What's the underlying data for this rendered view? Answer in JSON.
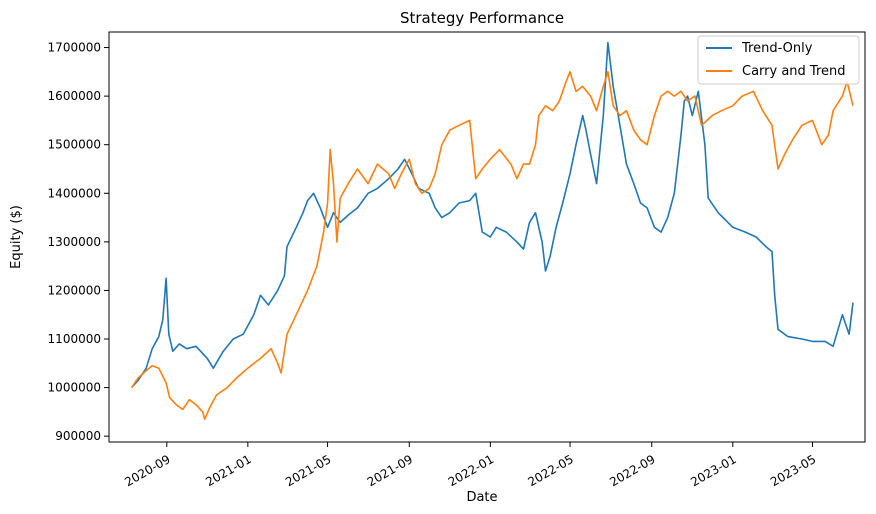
{
  "chart_data": {
    "type": "line",
    "title": "Strategy Performance",
    "xlabel": "Date",
    "ylabel": "Equity ($)",
    "x_ticks": [
      "2020-09",
      "2021-01",
      "2021-05",
      "2021-09",
      "2022-01",
      "2022-05",
      "2022-09",
      "2023-01",
      "2023-05"
    ],
    "y_ticks": [
      "900000",
      "1000000",
      "1100000",
      "1200000",
      "1300000",
      "1400000",
      "1500000",
      "1600000",
      "1700000"
    ],
    "xlim": [
      "2020-06-06",
      "2023-07-19"
    ],
    "ylim": [
      888000,
      1732000
    ],
    "legend_position": "top-right",
    "grid": false,
    "series": [
      {
        "name": "Trend-Only",
        "color": "#1f77b4",
        "points": [
          [
            "2020-07-10",
            1000000
          ],
          [
            "2020-07-20",
            1015000
          ],
          [
            "2020-08-01",
            1040000
          ],
          [
            "2020-08-10",
            1080000
          ],
          [
            "2020-08-20",
            1105000
          ],
          [
            "2020-08-26",
            1140000
          ],
          [
            "2020-08-31",
            1225000
          ],
          [
            "2020-09-04",
            1110000
          ],
          [
            "2020-09-10",
            1075000
          ],
          [
            "2020-09-20",
            1090000
          ],
          [
            "2020-10-01",
            1080000
          ],
          [
            "2020-10-15",
            1085000
          ],
          [
            "2020-11-01",
            1060000
          ],
          [
            "2020-11-10",
            1040000
          ],
          [
            "2020-11-25",
            1075000
          ],
          [
            "2020-12-10",
            1100000
          ],
          [
            "2020-12-25",
            1110000
          ],
          [
            "2021-01-10",
            1150000
          ],
          [
            "2021-01-20",
            1190000
          ],
          [
            "2021-02-01",
            1170000
          ],
          [
            "2021-02-15",
            1200000
          ],
          [
            "2021-02-25",
            1230000
          ],
          [
            "2021-03-01",
            1290000
          ],
          [
            "2021-03-15",
            1330000
          ],
          [
            "2021-03-25",
            1360000
          ],
          [
            "2021-04-01",
            1385000
          ],
          [
            "2021-04-10",
            1400000
          ],
          [
            "2021-04-20",
            1370000
          ],
          [
            "2021-05-01",
            1330000
          ],
          [
            "2021-05-10",
            1360000
          ],
          [
            "2021-05-20",
            1340000
          ],
          [
            "2021-06-01",
            1355000
          ],
          [
            "2021-06-15",
            1370000
          ],
          [
            "2021-07-01",
            1400000
          ],
          [
            "2021-07-15",
            1410000
          ],
          [
            "2021-08-01",
            1430000
          ],
          [
            "2021-08-15",
            1450000
          ],
          [
            "2021-08-25",
            1470000
          ],
          [
            "2021-09-05",
            1440000
          ],
          [
            "2021-09-15",
            1410000
          ],
          [
            "2021-10-01",
            1400000
          ],
          [
            "2021-10-10",
            1370000
          ],
          [
            "2021-10-20",
            1350000
          ],
          [
            "2021-11-01",
            1360000
          ],
          [
            "2021-11-15",
            1380000
          ],
          [
            "2021-12-01",
            1385000
          ],
          [
            "2021-12-10",
            1400000
          ],
          [
            "2021-12-20",
            1320000
          ],
          [
            "2022-01-01",
            1310000
          ],
          [
            "2022-01-10",
            1330000
          ],
          [
            "2022-01-25",
            1320000
          ],
          [
            "2022-02-10",
            1300000
          ],
          [
            "2022-02-20",
            1285000
          ],
          [
            "2022-03-01",
            1340000
          ],
          [
            "2022-03-10",
            1360000
          ],
          [
            "2022-03-20",
            1300000
          ],
          [
            "2022-03-25",
            1240000
          ],
          [
            "2022-04-01",
            1270000
          ],
          [
            "2022-04-10",
            1330000
          ],
          [
            "2022-04-20",
            1380000
          ],
          [
            "2022-05-01",
            1440000
          ],
          [
            "2022-05-10",
            1500000
          ],
          [
            "2022-05-20",
            1560000
          ],
          [
            "2022-05-25",
            1530000
          ],
          [
            "2022-06-01",
            1480000
          ],
          [
            "2022-06-10",
            1420000
          ],
          [
            "2022-06-20",
            1560000
          ],
          [
            "2022-06-27",
            1710000
          ],
          [
            "2022-07-05",
            1620000
          ],
          [
            "2022-07-15",
            1540000
          ],
          [
            "2022-07-25",
            1460000
          ],
          [
            "2022-08-05",
            1420000
          ],
          [
            "2022-08-15",
            1380000
          ],
          [
            "2022-08-25",
            1370000
          ],
          [
            "2022-09-05",
            1330000
          ],
          [
            "2022-09-15",
            1320000
          ],
          [
            "2022-09-25",
            1350000
          ],
          [
            "2022-10-05",
            1400000
          ],
          [
            "2022-10-15",
            1520000
          ],
          [
            "2022-10-20",
            1590000
          ],
          [
            "2022-10-25",
            1600000
          ],
          [
            "2022-11-01",
            1560000
          ],
          [
            "2022-11-10",
            1610000
          ],
          [
            "2022-11-20",
            1500000
          ],
          [
            "2022-11-25",
            1390000
          ],
          [
            "2022-12-10",
            1360000
          ],
          [
            "2023-01-01",
            1330000
          ],
          [
            "2023-01-20",
            1320000
          ],
          [
            "2023-02-05",
            1310000
          ],
          [
            "2023-02-20",
            1290000
          ],
          [
            "2023-03-01",
            1280000
          ],
          [
            "2023-03-05",
            1190000
          ],
          [
            "2023-03-10",
            1120000
          ],
          [
            "2023-03-25",
            1105000
          ],
          [
            "2023-04-15",
            1100000
          ],
          [
            "2023-05-01",
            1095000
          ],
          [
            "2023-05-20",
            1095000
          ],
          [
            "2023-06-01",
            1085000
          ],
          [
            "2023-06-15",
            1150000
          ],
          [
            "2023-06-25",
            1110000
          ],
          [
            "2023-07-01",
            1175000
          ]
        ]
      },
      {
        "name": "Carry and Trend",
        "color": "#ff7f0e",
        "points": [
          [
            "2020-07-10",
            1000000
          ],
          [
            "2020-07-20",
            1020000
          ],
          [
            "2020-08-01",
            1035000
          ],
          [
            "2020-08-10",
            1045000
          ],
          [
            "2020-08-20",
            1040000
          ],
          [
            "2020-08-31",
            1010000
          ],
          [
            "2020-09-05",
            980000
          ],
          [
            "2020-09-15",
            965000
          ],
          [
            "2020-09-25",
            955000
          ],
          [
            "2020-10-05",
            975000
          ],
          [
            "2020-10-15",
            965000
          ],
          [
            "2020-10-25",
            950000
          ],
          [
            "2020-10-28",
            935000
          ],
          [
            "2020-11-05",
            960000
          ],
          [
            "2020-11-15",
            985000
          ],
          [
            "2020-12-01",
            1000000
          ],
          [
            "2020-12-15",
            1020000
          ],
          [
            "2021-01-01",
            1040000
          ],
          [
            "2021-01-20",
            1060000
          ],
          [
            "2021-02-05",
            1080000
          ],
          [
            "2021-02-15",
            1050000
          ],
          [
            "2021-02-20",
            1030000
          ],
          [
            "2021-03-01",
            1110000
          ],
          [
            "2021-03-15",
            1150000
          ],
          [
            "2021-04-01",
            1200000
          ],
          [
            "2021-04-15",
            1250000
          ],
          [
            "2021-04-25",
            1320000
          ],
          [
            "2021-05-01",
            1380000
          ],
          [
            "2021-05-05",
            1490000
          ],
          [
            "2021-05-10",
            1420000
          ],
          [
            "2021-05-15",
            1300000
          ],
          [
            "2021-05-20",
            1390000
          ],
          [
            "2021-06-01",
            1420000
          ],
          [
            "2021-06-15",
            1450000
          ],
          [
            "2021-07-01",
            1420000
          ],
          [
            "2021-07-15",
            1460000
          ],
          [
            "2021-08-01",
            1440000
          ],
          [
            "2021-08-10",
            1410000
          ],
          [
            "2021-08-20",
            1440000
          ],
          [
            "2021-09-01",
            1470000
          ],
          [
            "2021-09-10",
            1420000
          ],
          [
            "2021-09-20",
            1400000
          ],
          [
            "2021-10-01",
            1410000
          ],
          [
            "2021-10-10",
            1440000
          ],
          [
            "2021-10-20",
            1500000
          ],
          [
            "2021-11-01",
            1530000
          ],
          [
            "2021-11-15",
            1540000
          ],
          [
            "2021-12-01",
            1550000
          ],
          [
            "2021-12-10",
            1430000
          ],
          [
            "2021-12-20",
            1450000
          ],
          [
            "2022-01-01",
            1470000
          ],
          [
            "2022-01-15",
            1490000
          ],
          [
            "2022-02-01",
            1460000
          ],
          [
            "2022-02-10",
            1430000
          ],
          [
            "2022-02-20",
            1460000
          ],
          [
            "2022-03-01",
            1460000
          ],
          [
            "2022-03-10",
            1500000
          ],
          [
            "2022-03-15",
            1560000
          ],
          [
            "2022-03-25",
            1580000
          ],
          [
            "2022-04-05",
            1570000
          ],
          [
            "2022-04-15",
            1590000
          ],
          [
            "2022-04-25",
            1630000
          ],
          [
            "2022-05-01",
            1650000
          ],
          [
            "2022-05-10",
            1610000
          ],
          [
            "2022-05-20",
            1620000
          ],
          [
            "2022-06-01",
            1600000
          ],
          [
            "2022-06-10",
            1570000
          ],
          [
            "2022-06-20",
            1620000
          ],
          [
            "2022-06-27",
            1650000
          ],
          [
            "2022-07-05",
            1580000
          ],
          [
            "2022-07-15",
            1560000
          ],
          [
            "2022-07-25",
            1570000
          ],
          [
            "2022-08-05",
            1530000
          ],
          [
            "2022-08-15",
            1510000
          ],
          [
            "2022-08-25",
            1500000
          ],
          [
            "2022-09-05",
            1560000
          ],
          [
            "2022-09-15",
            1600000
          ],
          [
            "2022-09-25",
            1610000
          ],
          [
            "2022-10-05",
            1600000
          ],
          [
            "2022-10-15",
            1610000
          ],
          [
            "2022-10-25",
            1590000
          ],
          [
            "2022-11-05",
            1600000
          ],
          [
            "2022-11-15",
            1540000
          ],
          [
            "2022-12-01",
            1560000
          ],
          [
            "2022-12-15",
            1570000
          ],
          [
            "2023-01-01",
            1580000
          ],
          [
            "2023-01-15",
            1600000
          ],
          [
            "2023-02-01",
            1610000
          ],
          [
            "2023-02-15",
            1570000
          ],
          [
            "2023-03-01",
            1540000
          ],
          [
            "2023-03-10",
            1450000
          ],
          [
            "2023-03-20",
            1480000
          ],
          [
            "2023-04-01",
            1510000
          ],
          [
            "2023-04-15",
            1540000
          ],
          [
            "2023-05-01",
            1550000
          ],
          [
            "2023-05-15",
            1500000
          ],
          [
            "2023-05-25",
            1520000
          ],
          [
            "2023-06-01",
            1570000
          ],
          [
            "2023-06-15",
            1600000
          ],
          [
            "2023-06-22",
            1630000
          ],
          [
            "2023-07-01",
            1580000
          ]
        ]
      }
    ]
  }
}
